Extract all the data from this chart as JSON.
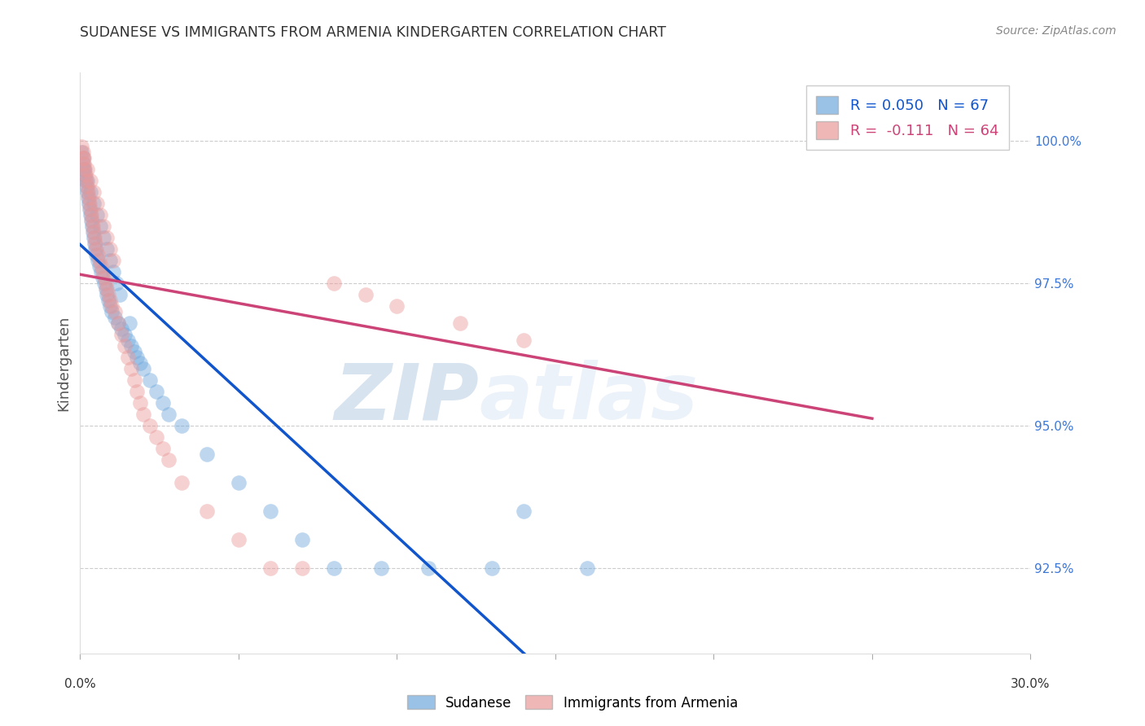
{
  "title": "SUDANESE VS IMMIGRANTS FROM ARMENIA KINDERGARTEN CORRELATION CHART",
  "source": "Source: ZipAtlas.com",
  "ylabel": "Kindergarten",
  "right_yticks": [
    92.5,
    95.0,
    97.5,
    100.0
  ],
  "right_ytick_labels": [
    "92.5%",
    "95.0%",
    "97.5%",
    "100.0%"
  ],
  "x_min": 0.0,
  "x_max": 30.0,
  "y_min": 91.0,
  "y_max": 101.2,
  "blue_R": 0.05,
  "blue_N": 67,
  "pink_R": -0.111,
  "pink_N": 64,
  "blue_color": "#6fa8dc",
  "pink_color": "#ea9999",
  "blue_trend_color": "#1155cc",
  "pink_trend_color": "#cc4477",
  "blue_scatter_x": [
    0.05,
    0.08,
    0.1,
    0.12,
    0.15,
    0.18,
    0.2,
    0.22,
    0.25,
    0.28,
    0.3,
    0.33,
    0.35,
    0.38,
    0.4,
    0.42,
    0.45,
    0.48,
    0.5,
    0.55,
    0.6,
    0.65,
    0.7,
    0.75,
    0.8,
    0.85,
    0.9,
    0.95,
    1.0,
    1.1,
    1.2,
    1.3,
    1.4,
    1.5,
    1.6,
    1.7,
    1.8,
    1.9,
    2.0,
    2.2,
    2.4,
    2.6,
    2.8,
    3.2,
    4.0,
    5.0,
    6.0,
    7.0,
    8.0,
    9.5,
    11.0,
    13.0,
    14.0,
    16.0,
    0.13,
    0.23,
    0.33,
    0.43,
    0.53,
    0.63,
    0.73,
    0.83,
    0.93,
    1.05,
    1.15,
    1.25,
    1.55
  ],
  "blue_scatter_y": [
    99.8,
    99.7,
    99.6,
    99.5,
    99.4,
    99.3,
    99.2,
    99.1,
    99.0,
    98.9,
    98.8,
    98.7,
    98.6,
    98.5,
    98.4,
    98.3,
    98.2,
    98.1,
    98.0,
    97.9,
    97.8,
    97.7,
    97.6,
    97.5,
    97.4,
    97.3,
    97.2,
    97.1,
    97.0,
    96.9,
    96.8,
    96.7,
    96.6,
    96.5,
    96.4,
    96.3,
    96.2,
    96.1,
    96.0,
    95.8,
    95.6,
    95.4,
    95.2,
    95.0,
    94.5,
    94.0,
    93.5,
    93.0,
    92.5,
    92.5,
    92.5,
    92.5,
    93.5,
    92.5,
    99.5,
    99.3,
    99.1,
    98.9,
    98.7,
    98.5,
    98.3,
    98.1,
    97.9,
    97.7,
    97.5,
    97.3,
    96.8
  ],
  "pink_scatter_x": [
    0.05,
    0.08,
    0.1,
    0.12,
    0.15,
    0.18,
    0.2,
    0.22,
    0.25,
    0.28,
    0.3,
    0.33,
    0.35,
    0.38,
    0.4,
    0.42,
    0.45,
    0.48,
    0.5,
    0.55,
    0.6,
    0.65,
    0.7,
    0.75,
    0.8,
    0.85,
    0.9,
    0.95,
    1.0,
    1.1,
    1.2,
    1.3,
    1.4,
    1.5,
    1.6,
    1.7,
    1.8,
    1.9,
    2.0,
    2.2,
    2.4,
    2.6,
    2.8,
    3.2,
    4.0,
    5.0,
    6.0,
    7.0,
    8.0,
    9.0,
    10.0,
    12.0,
    14.0,
    25.0,
    0.13,
    0.23,
    0.33,
    0.43,
    0.53,
    0.63,
    0.73,
    0.83,
    0.93,
    1.05
  ],
  "pink_scatter_y": [
    99.9,
    99.8,
    99.7,
    99.6,
    99.5,
    99.4,
    99.3,
    99.2,
    99.1,
    99.0,
    98.9,
    98.8,
    98.7,
    98.6,
    98.5,
    98.4,
    98.3,
    98.2,
    98.1,
    98.0,
    97.9,
    97.8,
    97.7,
    97.6,
    97.5,
    97.4,
    97.3,
    97.2,
    97.1,
    97.0,
    96.8,
    96.6,
    96.4,
    96.2,
    96.0,
    95.8,
    95.6,
    95.4,
    95.2,
    95.0,
    94.8,
    94.6,
    94.4,
    94.0,
    93.5,
    93.0,
    92.5,
    92.5,
    97.5,
    97.3,
    97.1,
    96.8,
    96.5,
    100.0,
    99.7,
    99.5,
    99.3,
    99.1,
    98.9,
    98.7,
    98.5,
    98.3,
    98.1,
    97.9
  ],
  "watermark_zip": "ZIP",
  "watermark_atlas": "atlas",
  "background_color": "#ffffff",
  "grid_color": "#cccccc",
  "title_color": "#333333",
  "right_axis_color": "#3c78d8"
}
